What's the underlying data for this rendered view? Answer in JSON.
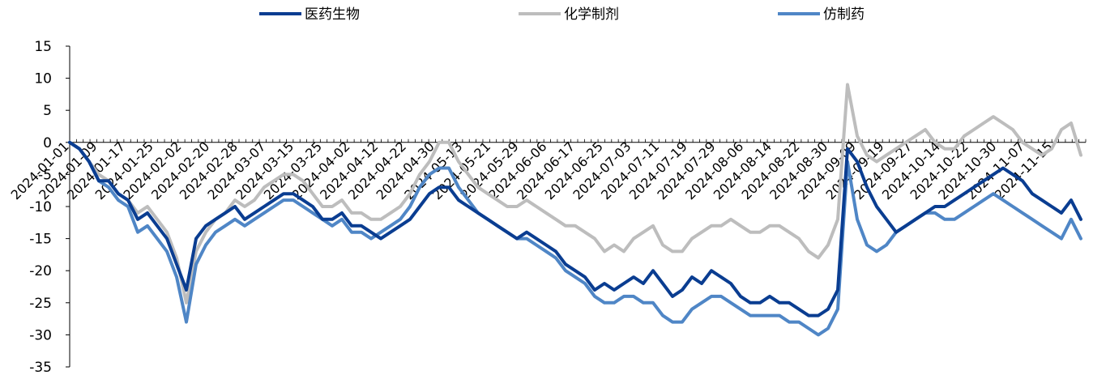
{
  "chart_data": {
    "type": "line",
    "title": "",
    "xlabel": "",
    "ylabel": "",
    "ylim": [
      -35,
      15
    ],
    "yticks": [
      15,
      10,
      5,
      0,
      -5,
      -10,
      -15,
      -20,
      -25,
      -30,
      -35
    ],
    "grid": false,
    "legend_position": "top",
    "x_tick_labels": [
      "2024-01-01",
      "2024-01-09",
      "2024-01-17",
      "2024-01-25",
      "2024-02-02",
      "2024-02-20",
      "2024-02-28",
      "2024-03-07",
      "2024-03-15",
      "2024-03-25",
      "2024-04-02",
      "2024-04-12",
      "2024-04-22",
      "2024-04-30",
      "2024-05-13",
      "2024-05-21",
      "2024-05-29",
      "2024-06-06",
      "2024-06-17",
      "2024-06-25",
      "2024-07-03",
      "2024-07-11",
      "2024-07-19",
      "2024-07-29",
      "2024-08-06",
      "2024-08-14",
      "2024-08-22",
      "2024-08-30",
      "2024-09-09",
      "2024-09-19",
      "2024-09-27",
      "2024-10-14",
      "2024-10-22",
      "2024-10-30",
      "2024-11-07",
      "2024-11-15"
    ],
    "series": [
      {
        "name": "医药生物",
        "color": "#0a3d91",
        "values": [
          0,
          -1,
          -3,
          -6,
          -6,
          -8,
          -9,
          -12,
          -11,
          -13,
          -15,
          -19,
          -23,
          -15,
          -13,
          -12,
          -11,
          -10,
          -12,
          -11,
          -10,
          -9,
          -8,
          -8,
          -9,
          -10,
          -12,
          -12,
          -11,
          -13,
          -13,
          -14,
          -15,
          -14,
          -13,
          -12,
          -10,
          -8,
          -7,
          -7,
          -9,
          -10,
          -11,
          -12,
          -13,
          -14,
          -15,
          -14,
          -15,
          -16,
          -17,
          -19,
          -20,
          -21,
          -23,
          -22,
          -23,
          -22,
          -21,
          -22,
          -20,
          -22,
          -24,
          -23,
          -21,
          -22,
          -20,
          -21,
          -22,
          -24,
          -25,
          -25,
          -24,
          -25,
          -25,
          -26,
          -27,
          -27,
          -26,
          -23,
          -1,
          -3,
          -7,
          -10,
          -12,
          -14,
          -13,
          -12,
          -11,
          -10,
          -10,
          -9,
          -8,
          -7,
          -6,
          -5,
          -4,
          -5,
          -6,
          -8,
          -9,
          -10,
          -11,
          -9,
          -12
        ],
        "dates_index_note": ""
      },
      {
        "name": "化学制剂",
        "color": "#bdbdbd",
        "values": [
          0,
          -1,
          -3,
          -5,
          -6,
          -8,
          -9,
          -11,
          -10,
          -12,
          -14,
          -18,
          -25,
          -17,
          -14,
          -12,
          -11,
          -9,
          -10,
          -9,
          -7,
          -6,
          -5,
          -5,
          -6,
          -8,
          -10,
          -10,
          -9,
          -11,
          -11,
          -12,
          -12,
          -11,
          -10,
          -8,
          -5,
          -3,
          0,
          0,
          -3,
          -5,
          -7,
          -8,
          -9,
          -10,
          -10,
          -9,
          -10,
          -11,
          -12,
          -13,
          -13,
          -14,
          -15,
          -17,
          -16,
          -17,
          -15,
          -14,
          -13,
          -16,
          -17,
          -17,
          -15,
          -14,
          -13,
          -13,
          -12,
          -13,
          -14,
          -14,
          -13,
          -13,
          -14,
          -15,
          -17,
          -18,
          -16,
          -12,
          9,
          1,
          -2,
          -3,
          -2,
          -1,
          0,
          1,
          2,
          0,
          -1,
          -1,
          1,
          2,
          3,
          4,
          3,
          2,
          0,
          -1,
          -2,
          -1,
          2,
          3,
          -2
        ]
      },
      {
        "name": "仿制药",
        "color": "#4f86c6",
        "values": [
          0,
          -1,
          -3,
          -6,
          -7,
          -9,
          -10,
          -14,
          -13,
          -15,
          -17,
          -21,
          -28,
          -19,
          -16,
          -14,
          -13,
          -12,
          -13,
          -12,
          -11,
          -10,
          -9,
          -9,
          -10,
          -11,
          -12,
          -13,
          -12,
          -14,
          -14,
          -15,
          -14,
          -13,
          -12,
          -10,
          -7,
          -5,
          -4,
          -4,
          -7,
          -9,
          -11,
          -12,
          -13,
          -14,
          -15,
          -15,
          -16,
          -17,
          -18,
          -20,
          -21,
          -22,
          -24,
          -25,
          -25,
          -24,
          -24,
          -25,
          -25,
          -27,
          -28,
          -28,
          -26,
          -25,
          -24,
          -24,
          -25,
          -26,
          -27,
          -27,
          -27,
          -27,
          -28,
          -28,
          -29,
          -30,
          -29,
          -26,
          -3,
          -12,
          -16,
          -17,
          -16,
          -14,
          -13,
          -12,
          -11,
          -11,
          -12,
          -12,
          -11,
          -10,
          -9,
          -8,
          -9,
          -10,
          -11,
          -12,
          -13,
          -14,
          -15,
          -12,
          -15
        ]
      }
    ]
  }
}
